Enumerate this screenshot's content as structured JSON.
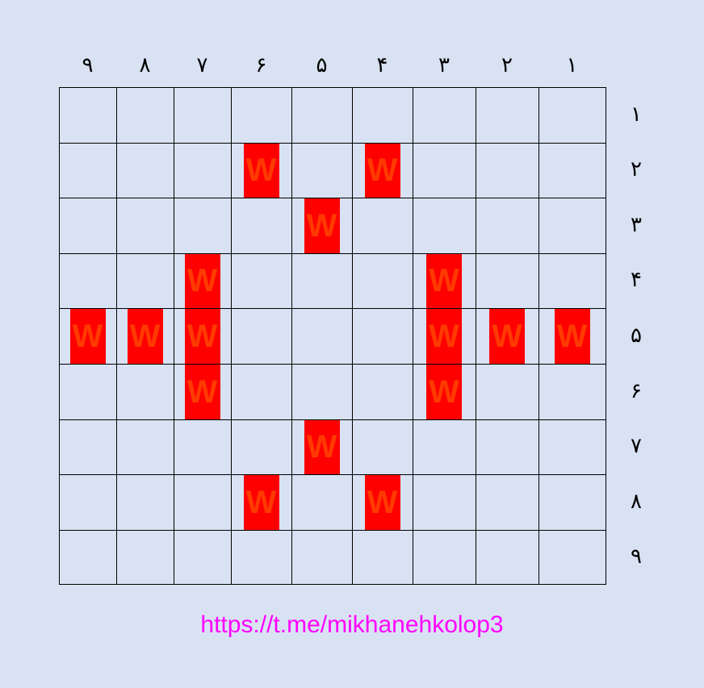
{
  "board": {
    "column_labels": [
      "١",
      "٢",
      "٣",
      "۴",
      "۵",
      "۶",
      "٧",
      "٨",
      "٩"
    ],
    "row_labels": [
      "١",
      "٢",
      "٣",
      "۴",
      "۵",
      "۶",
      "٧",
      "٨",
      "٩"
    ],
    "tile_letter": "W",
    "tile_color": "#ff0000",
    "tiles": [
      {
        "row": 2,
        "col": 6
      },
      {
        "row": 2,
        "col": 4
      },
      {
        "row": 3,
        "col": 5
      },
      {
        "row": 4,
        "col": 7
      },
      {
        "row": 4,
        "col": 3
      },
      {
        "row": 5,
        "col": 9
      },
      {
        "row": 5,
        "col": 8
      },
      {
        "row": 5,
        "col": 7
      },
      {
        "row": 5,
        "col": 3
      },
      {
        "row": 5,
        "col": 2
      },
      {
        "row": 5,
        "col": 1
      },
      {
        "row": 6,
        "col": 7
      },
      {
        "row": 6,
        "col": 3
      },
      {
        "row": 7,
        "col": 5
      },
      {
        "row": 8,
        "col": 6
      },
      {
        "row": 8,
        "col": 4
      }
    ]
  },
  "footer": {
    "link": "https://t.me/mikhanehkolop3"
  }
}
